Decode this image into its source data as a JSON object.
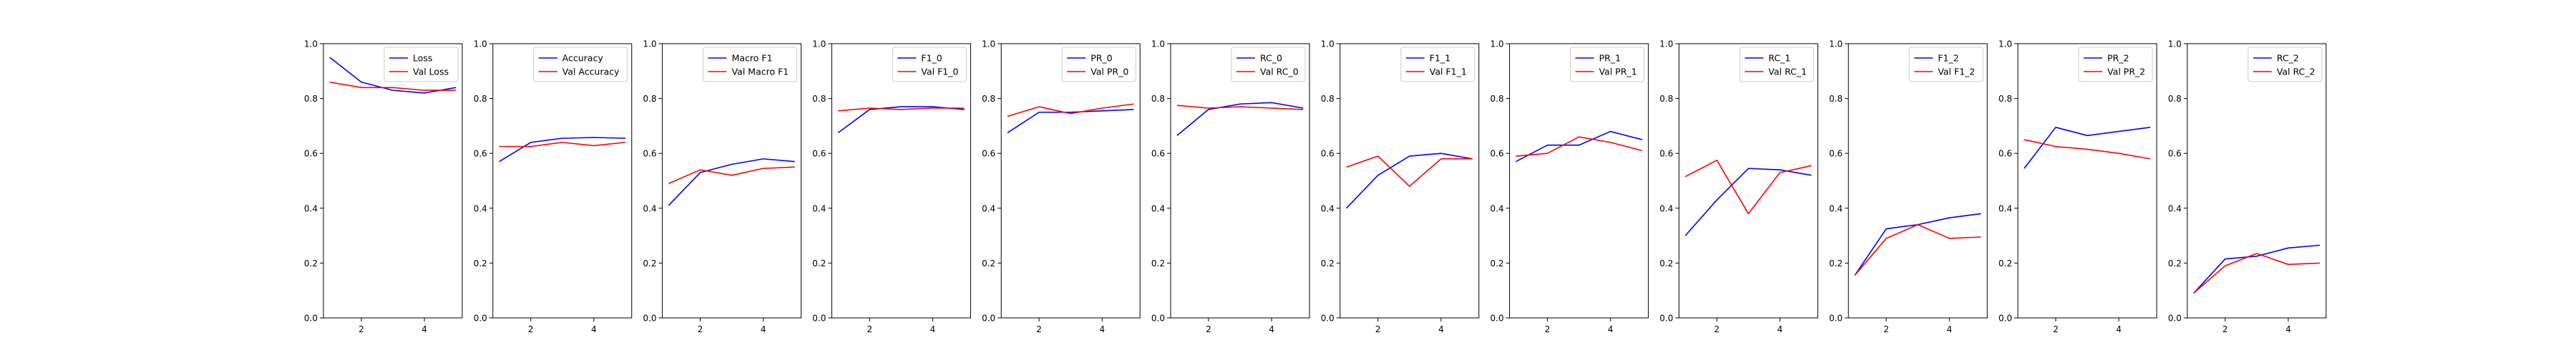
{
  "chart_data": [
    {
      "type": "line",
      "x": [
        1,
        2,
        3,
        4,
        5
      ],
      "ylim": [
        0,
        1.0
      ],
      "xticks": [
        2,
        4
      ],
      "yticks": [
        0.0,
        0.2,
        0.4,
        0.6,
        0.8,
        1.0
      ],
      "legend": "top-right",
      "series": [
        {
          "name": "Loss",
          "color": "#0000ff",
          "values": [
            0.95,
            0.86,
            0.83,
            0.82,
            0.84
          ]
        },
        {
          "name": "Val Loss",
          "color": "#ff0000",
          "values": [
            0.86,
            0.84,
            0.84,
            0.83,
            0.83
          ]
        }
      ]
    },
    {
      "type": "line",
      "x": [
        1,
        2,
        3,
        4,
        5
      ],
      "ylim": [
        0,
        1.0
      ],
      "xticks": [
        2,
        4
      ],
      "yticks": [
        0.0,
        0.2,
        0.4,
        0.6,
        0.8,
        1.0
      ],
      "legend": "top-right",
      "series": [
        {
          "name": "Accuracy",
          "color": "#0000ff",
          "values": [
            0.57,
            0.64,
            0.655,
            0.658,
            0.655
          ]
        },
        {
          "name": "Val Accuracy",
          "color": "#ff0000",
          "values": [
            0.625,
            0.625,
            0.64,
            0.628,
            0.64
          ]
        }
      ]
    },
    {
      "type": "line",
      "x": [
        1,
        2,
        3,
        4,
        5
      ],
      "ylim": [
        0,
        1.0
      ],
      "xticks": [
        2,
        4
      ],
      "yticks": [
        0.0,
        0.2,
        0.4,
        0.6,
        0.8,
        1.0
      ],
      "legend": "top-right",
      "series": [
        {
          "name": "Macro F1",
          "color": "#0000ff",
          "values": [
            0.41,
            0.53,
            0.56,
            0.58,
            0.57
          ]
        },
        {
          "name": "Val Macro F1",
          "color": "#ff0000",
          "values": [
            0.49,
            0.54,
            0.52,
            0.545,
            0.55
          ]
        }
      ]
    },
    {
      "type": "line",
      "x": [
        1,
        2,
        3,
        4,
        5
      ],
      "ylim": [
        0,
        1.0
      ],
      "xticks": [
        2,
        4
      ],
      "yticks": [
        0.0,
        0.2,
        0.4,
        0.6,
        0.8,
        1.0
      ],
      "legend": "top-right",
      "series": [
        {
          "name": "F1_0",
          "color": "#0000ff",
          "values": [
            0.675,
            0.76,
            0.77,
            0.77,
            0.76
          ]
        },
        {
          "name": "Val F1_0",
          "color": "#ff0000",
          "values": [
            0.755,
            0.765,
            0.76,
            0.765,
            0.765
          ]
        }
      ]
    },
    {
      "type": "line",
      "x": [
        1,
        2,
        3,
        4,
        5
      ],
      "ylim": [
        0,
        1.0
      ],
      "xticks": [
        2,
        4
      ],
      "yticks": [
        0.0,
        0.2,
        0.4,
        0.6,
        0.8,
        1.0
      ],
      "legend": "top-right",
      "series": [
        {
          "name": "PR_0",
          "color": "#0000ff",
          "values": [
            0.675,
            0.75,
            0.75,
            0.755,
            0.76
          ]
        },
        {
          "name": "Val PR_0",
          "color": "#ff0000",
          "values": [
            0.735,
            0.77,
            0.745,
            0.765,
            0.78
          ]
        }
      ]
    },
    {
      "type": "line",
      "x": [
        1,
        2,
        3,
        4,
        5
      ],
      "ylim": [
        0,
        1.0
      ],
      "xticks": [
        2,
        4
      ],
      "yticks": [
        0.0,
        0.2,
        0.4,
        0.6,
        0.8,
        1.0
      ],
      "legend": "top-right",
      "series": [
        {
          "name": "RC_0",
          "color": "#0000ff",
          "values": [
            0.665,
            0.76,
            0.78,
            0.785,
            0.765
          ]
        },
        {
          "name": "Val RC_0",
          "color": "#ff0000",
          "values": [
            0.775,
            0.765,
            0.77,
            0.765,
            0.76
          ]
        }
      ]
    },
    {
      "type": "line",
      "x": [
        1,
        2,
        3,
        4,
        5
      ],
      "ylim": [
        0,
        1.0
      ],
      "xticks": [
        2,
        4
      ],
      "yticks": [
        0.0,
        0.2,
        0.4,
        0.6,
        0.8,
        1.0
      ],
      "legend": "top-right",
      "series": [
        {
          "name": "F1_1",
          "color": "#0000ff",
          "values": [
            0.4,
            0.52,
            0.59,
            0.6,
            0.58
          ]
        },
        {
          "name": "Val F1_1",
          "color": "#ff0000",
          "values": [
            0.55,
            0.59,
            0.48,
            0.58,
            0.58
          ]
        }
      ]
    },
    {
      "type": "line",
      "x": [
        1,
        2,
        3,
        4,
        5
      ],
      "ylim": [
        0,
        1.0
      ],
      "xticks": [
        2,
        4
      ],
      "yticks": [
        0.0,
        0.2,
        0.4,
        0.6,
        0.8,
        1.0
      ],
      "legend": "top-right",
      "series": [
        {
          "name": "PR_1",
          "color": "#0000ff",
          "values": [
            0.57,
            0.63,
            0.63,
            0.68,
            0.65
          ]
        },
        {
          "name": "Val PR_1",
          "color": "#ff0000",
          "values": [
            0.59,
            0.6,
            0.66,
            0.64,
            0.61
          ]
        }
      ]
    },
    {
      "type": "line",
      "x": [
        1,
        2,
        3,
        4,
        5
      ],
      "ylim": [
        0,
        1.0
      ],
      "xticks": [
        2,
        4
      ],
      "yticks": [
        0.0,
        0.2,
        0.4,
        0.6,
        0.8,
        1.0
      ],
      "legend": "top-right",
      "series": [
        {
          "name": "RC_1",
          "color": "#0000ff",
          "values": [
            0.3,
            0.43,
            0.545,
            0.54,
            0.52
          ]
        },
        {
          "name": "Val RC_1",
          "color": "#ff0000",
          "values": [
            0.515,
            0.575,
            0.38,
            0.53,
            0.555
          ]
        }
      ]
    },
    {
      "type": "line",
      "x": [
        1,
        2,
        3,
        4,
        5
      ],
      "ylim": [
        0,
        1.0
      ],
      "xticks": [
        2,
        4
      ],
      "yticks": [
        0.0,
        0.2,
        0.4,
        0.6,
        0.8,
        1.0
      ],
      "legend": "top-right",
      "series": [
        {
          "name": "F1_2",
          "color": "#0000ff",
          "values": [
            0.155,
            0.325,
            0.34,
            0.365,
            0.38
          ]
        },
        {
          "name": "Val F1_2",
          "color": "#ff0000",
          "values": [
            0.155,
            0.29,
            0.34,
            0.29,
            0.295
          ]
        }
      ]
    },
    {
      "type": "line",
      "x": [
        1,
        2,
        3,
        4,
        5
      ],
      "ylim": [
        0,
        1.0
      ],
      "xticks": [
        2,
        4
      ],
      "yticks": [
        0.0,
        0.2,
        0.4,
        0.6,
        0.8,
        1.0
      ],
      "legend": "top-right",
      "series": [
        {
          "name": "PR_2",
          "color": "#0000ff",
          "values": [
            0.545,
            0.695,
            0.665,
            0.68,
            0.695
          ]
        },
        {
          "name": "Val PR_2",
          "color": "#ff0000",
          "values": [
            0.65,
            0.625,
            0.615,
            0.6,
            0.58
          ]
        }
      ]
    },
    {
      "type": "line",
      "x": [
        1,
        2,
        3,
        4,
        5
      ],
      "ylim": [
        0,
        1.0
      ],
      "xticks": [
        2,
        4
      ],
      "yticks": [
        0.0,
        0.2,
        0.4,
        0.6,
        0.8,
        1.0
      ],
      "legend": "top-right",
      "series": [
        {
          "name": "RC_2",
          "color": "#0000ff",
          "values": [
            0.09,
            0.215,
            0.225,
            0.255,
            0.265
          ]
        },
        {
          "name": "Val RC_2",
          "color": "#ff0000",
          "values": [
            0.09,
            0.19,
            0.235,
            0.195,
            0.2
          ]
        }
      ]
    }
  ]
}
